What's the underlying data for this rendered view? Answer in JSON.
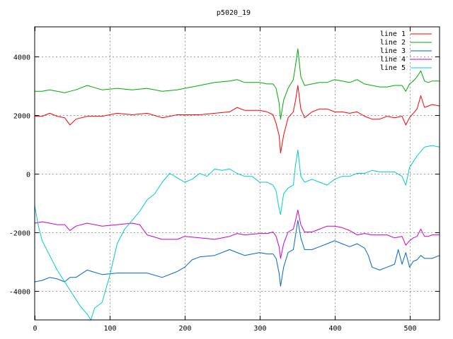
{
  "chart_data": {
    "type": "line",
    "title": "p5020_19",
    "xlabel": "",
    "ylabel": "",
    "xlim": [
      0,
      540
    ],
    "ylim": [
      -5000,
      5000
    ],
    "xticks": [
      0,
      100,
      200,
      300,
      400,
      500
    ],
    "yticks": [
      -4000,
      -2000,
      0,
      2000,
      4000
    ],
    "grid": true,
    "legend_position": "top-right",
    "series": [
      {
        "name": "line 1",
        "color": "#ff0000",
        "x": [
          0,
          10,
          20,
          30,
          40,
          47,
          55,
          70,
          90,
          110,
          130,
          150,
          170,
          190,
          200,
          220,
          240,
          260,
          270,
          280,
          300,
          310,
          318,
          322,
          326,
          328,
          332,
          338,
          345,
          348,
          351,
          355,
          360,
          370,
          380,
          390,
          400,
          410,
          420,
          430,
          440,
          450,
          460,
          470,
          480,
          490,
          495,
          500,
          505,
          510,
          515,
          520,
          525,
          530,
          540
        ],
        "values": [
          1950,
          1950,
          2050,
          1950,
          1900,
          1650,
          1850,
          1950,
          1950,
          2050,
          2000,
          2050,
          1900,
          2000,
          2000,
          2000,
          2050,
          2100,
          2250,
          2150,
          2150,
          2100,
          2000,
          1700,
          1300,
          700,
          1300,
          1900,
          2100,
          2500,
          3000,
          2200,
          1900,
          2100,
          2200,
          2200,
          2100,
          2100,
          2050,
          2100,
          1950,
          1850,
          1850,
          1950,
          1900,
          1950,
          1650,
          1900,
          2050,
          2200,
          2650,
          2250,
          2300,
          2350,
          2300
        ]
      },
      {
        "name": "line 2",
        "color": "#00aa00",
        "x": [
          0,
          10,
          20,
          30,
          40,
          47,
          55,
          70,
          90,
          110,
          130,
          150,
          170,
          190,
          200,
          220,
          240,
          260,
          270,
          280,
          300,
          310,
          318,
          322,
          326,
          328,
          332,
          338,
          345,
          348,
          351,
          355,
          360,
          370,
          380,
          390,
          400,
          410,
          420,
          430,
          440,
          450,
          460,
          470,
          480,
          490,
          495,
          500,
          505,
          510,
          515,
          520,
          525,
          530,
          540
        ],
        "values": [
          2800,
          2800,
          2850,
          2800,
          2750,
          2800,
          2850,
          3000,
          2850,
          2900,
          2850,
          2900,
          2800,
          2850,
          2900,
          3000,
          3100,
          3150,
          3200,
          3100,
          3100,
          3050,
          3050,
          2900,
          2400,
          1850,
          2500,
          2900,
          3200,
          3700,
          4250,
          3300,
          3000,
          3050,
          3100,
          3100,
          3200,
          3150,
          3100,
          3200,
          3050,
          3000,
          2950,
          2950,
          3000,
          3000,
          2800,
          3050,
          3150,
          3300,
          3500,
          3150,
          3100,
          3150,
          3150
        ]
      },
      {
        "name": "line 3",
        "color": "#0066cc",
        "x": [
          0,
          10,
          20,
          30,
          40,
          47,
          55,
          70,
          90,
          110,
          130,
          150,
          170,
          190,
          200,
          210,
          220,
          240,
          260,
          270,
          280,
          300,
          310,
          318,
          322,
          326,
          328,
          332,
          338,
          345,
          348,
          351,
          355,
          360,
          370,
          380,
          390,
          400,
          410,
          420,
          430,
          440,
          445,
          450,
          460,
          470,
          480,
          485,
          490,
          495,
          500,
          505,
          510,
          515,
          520,
          530,
          540
        ],
        "values": [
          -3700,
          -3650,
          -3550,
          -3600,
          -3700,
          -3550,
          -3550,
          -3300,
          -3450,
          -3400,
          -3400,
          -3400,
          -3550,
          -3350,
          -3200,
          -2950,
          -2850,
          -2800,
          -2600,
          -2700,
          -2800,
          -2700,
          -2750,
          -2750,
          -2900,
          -3400,
          -3850,
          -3200,
          -2700,
          -2600,
          -2100,
          -1600,
          -2200,
          -2600,
          -2600,
          -2500,
          -2400,
          -2300,
          -2400,
          -2500,
          -2400,
          -2550,
          -2800,
          -3200,
          -3300,
          -3200,
          -3100,
          -2600,
          -3100,
          -2700,
          -3200,
          -3000,
          -2950,
          -2800,
          -2900,
          -2900,
          -2800
        ]
      },
      {
        "name": "line 4",
        "color": "#cc00cc",
        "x": [
          0,
          10,
          20,
          30,
          40,
          47,
          55,
          70,
          90,
          110,
          130,
          140,
          150,
          170,
          190,
          200,
          220,
          240,
          260,
          270,
          280,
          300,
          310,
          318,
          322,
          326,
          328,
          332,
          338,
          345,
          348,
          351,
          355,
          360,
          370,
          380,
          390,
          400,
          410,
          420,
          430,
          440,
          450,
          460,
          470,
          480,
          490,
          495,
          500,
          505,
          510,
          515,
          520,
          525,
          530,
          540
        ],
        "values": [
          -1700,
          -1650,
          -1700,
          -1750,
          -1750,
          -1950,
          -1800,
          -1700,
          -1800,
          -1750,
          -1700,
          -1750,
          -2100,
          -2250,
          -2250,
          -2150,
          -2200,
          -2250,
          -2150,
          -2050,
          -2100,
          -2050,
          -2050,
          -2000,
          -2150,
          -2500,
          -2900,
          -2400,
          -2000,
          -1900,
          -1600,
          -1250,
          -1750,
          -2000,
          -2000,
          -1900,
          -1800,
          -1800,
          -1850,
          -1950,
          -2100,
          -2050,
          -2100,
          -2100,
          -2100,
          -2200,
          -2150,
          -2450,
          -2300,
          -2200,
          -2150,
          -1900,
          -2150,
          -2150,
          -2100,
          -2100
        ]
      },
      {
        "name": "line 5",
        "color": "#00cccc",
        "x": [
          0,
          5,
          10,
          20,
          30,
          40,
          50,
          60,
          70,
          75,
          80,
          90,
          100,
          110,
          120,
          130,
          140,
          150,
          160,
          170,
          180,
          190,
          200,
          210,
          220,
          230,
          240,
          250,
          260,
          270,
          280,
          290,
          300,
          310,
          318,
          322,
          326,
          328,
          332,
          338,
          345,
          348,
          351,
          355,
          360,
          370,
          380,
          390,
          400,
          410,
          420,
          430,
          440,
          450,
          460,
          470,
          480,
          490,
          495,
          500,
          510,
          520,
          530,
          540
        ],
        "values": [
          -1100,
          -1800,
          -2300,
          -2800,
          -3300,
          -3700,
          -4100,
          -4500,
          -4800,
          -5000,
          -4600,
          -4400,
          -3500,
          -2400,
          -1900,
          -1600,
          -1300,
          -900,
          -700,
          -300,
          0,
          -150,
          -300,
          -200,
          0,
          -100,
          150,
          100,
          150,
          0,
          -100,
          -100,
          -300,
          -300,
          -400,
          -600,
          -1200,
          -1400,
          -700,
          -500,
          -400,
          300,
          800,
          -100,
          -300,
          -200,
          -300,
          -400,
          -200,
          -100,
          -100,
          0,
          0,
          100,
          50,
          50,
          50,
          -100,
          -400,
          200,
          600,
          900,
          950,
          900
        ]
      }
    ]
  }
}
